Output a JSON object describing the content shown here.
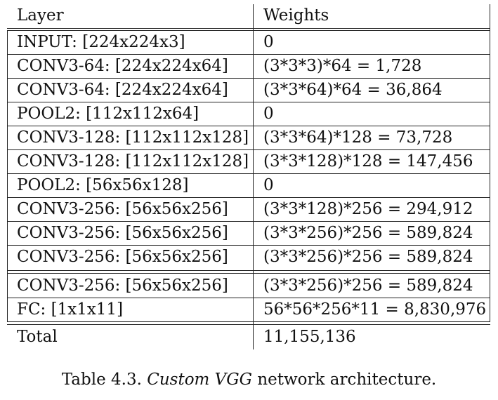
{
  "table": {
    "headers": {
      "layer": "Layer",
      "weights": "Weights"
    },
    "rows": [
      {
        "layer": "INPUT: [224x224x3]",
        "weights": "0"
      },
      {
        "layer": "CONV3-64: [224x224x64]",
        "weights": "(3*3*3)*64 = 1,728"
      },
      {
        "layer": "CONV3-64: [224x224x64]",
        "weights": "(3*3*64)*64 = 36,864"
      },
      {
        "layer": "POOL2: [112x112x64]",
        "weights": "0"
      },
      {
        "layer": "CONV3-128: [112x112x128]",
        "weights": "(3*3*64)*128 = 73,728"
      },
      {
        "layer": "CONV3-128: [112x112x128]",
        "weights": "(3*3*128)*128 = 147,456"
      },
      {
        "layer": "POOL2: [56x56x128]",
        "weights": "0"
      },
      {
        "layer": "CONV3-256: [56x56x256]",
        "weights": "(3*3*128)*256 = 294,912"
      },
      {
        "layer": "CONV3-256: [56x56x256]",
        "weights": "(3*3*256)*256 = 589,824"
      },
      {
        "layer": "CONV3-256: [56x56x256]",
        "weights": "(3*3*256)*256 = 589,824"
      },
      {
        "layer": "CONV3-256: [56x56x256]",
        "weights": "(3*3*256)*256 = 589,824"
      },
      {
        "layer": "FC: [1x1x11]",
        "weights": "56*56*256*11 = 8,830,976"
      }
    ],
    "total": {
      "layer": "Total",
      "weights": "11,155,136"
    }
  },
  "caption": {
    "prefix": "Table 4.3.",
    "emphasis": "Custom VGG",
    "suffix": "network architecture."
  }
}
